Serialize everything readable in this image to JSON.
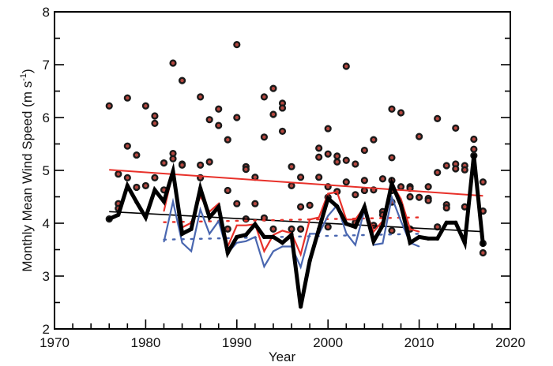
{
  "chart_data": {
    "type": "line",
    "title": "",
    "xlabel": "Year",
    "ylabel": "Monthly Mean Wind Speed (m s⁻¹)",
    "ylabel_parts": {
      "main": "Monthly Mean Wind Speed (m s",
      "sup": "-1",
      "close": ")"
    },
    "xlim": [
      1970,
      2020
    ],
    "ylim": [
      2,
      8
    ],
    "x_ticks": [
      1970,
      1980,
      1990,
      2000,
      2010,
      2020
    ],
    "x_tick_labels": [
      "1970",
      "1980",
      "1990",
      "2000",
      "2010",
      "2020"
    ],
    "x_minor_step": 2,
    "y_ticks": [
      2,
      3,
      4,
      5,
      6,
      7,
      8
    ],
    "y_tick_labels": [
      "2",
      "3",
      "4",
      "5",
      "6",
      "7",
      "8"
    ],
    "y_minor_step": 0.5,
    "grid": false,
    "colors": {
      "black_series": "#000000",
      "red_series": "#e8312a",
      "blue_series": "#4a67b0",
      "dot_center": "#b5473f",
      "dot_ring": "#1a1a1a"
    },
    "series": [
      {
        "name": "annual-mean-black",
        "color": "#000000",
        "style": "thick-solid",
        "x": [
          1976,
          1977,
          1978,
          1979,
          1980,
          1981,
          1982,
          1983,
          1984,
          1985,
          1986,
          1987,
          1988,
          1989,
          1990,
          1991,
          1992,
          1993,
          1994,
          1995,
          1996,
          1997,
          1998,
          1999,
          2000,
          2001,
          2002,
          2003,
          2004,
          2005,
          2006,
          2007,
          2008,
          2009,
          2010,
          2011,
          2012,
          2013,
          2014,
          2015,
          2016,
          2017
        ],
        "values": [
          4.08,
          4.16,
          4.71,
          4.4,
          4.11,
          4.63,
          4.41,
          4.98,
          3.8,
          3.89,
          4.66,
          4.11,
          4.31,
          3.44,
          3.74,
          3.78,
          3.98,
          3.74,
          3.74,
          3.63,
          3.78,
          2.42,
          3.29,
          3.89,
          4.47,
          4.32,
          3.99,
          3.93,
          4.31,
          3.66,
          3.96,
          4.75,
          4.34,
          3.63,
          3.74,
          3.71,
          3.71,
          4.01,
          4.01,
          3.63,
          5.28,
          3.6
        ]
      },
      {
        "name": "annual-mean-red",
        "color": "#e8312a",
        "style": "solid",
        "x": [
          1982,
          1983,
          1984,
          1985,
          1986,
          1987,
          1988,
          1989,
          1990,
          1991,
          1992,
          1993,
          1994,
          1995,
          1996,
          1997,
          1998,
          1999,
          2000,
          2001,
          2002,
          2003,
          2004,
          2005,
          2006,
          2007,
          2008,
          2009,
          2010
        ],
        "values": [
          4.23,
          4.98,
          3.92,
          4.01,
          4.51,
          4.22,
          4.37,
          3.56,
          3.96,
          3.96,
          3.98,
          3.47,
          3.78,
          3.86,
          3.81,
          3.41,
          4.07,
          4.11,
          4.56,
          4.59,
          4.07,
          4.07,
          4.31,
          3.84,
          4.04,
          4.75,
          4.46,
          3.89,
          3.84
        ]
      },
      {
        "name": "annual-mean-blue",
        "color": "#4a67b0",
        "style": "solid",
        "x": [
          1982,
          1983,
          1984,
          1985,
          1986,
          1987,
          1988,
          1989,
          1990,
          1991,
          1992,
          1993,
          1994,
          1995,
          1996,
          1997,
          1998,
          1999,
          2000,
          2001,
          2002,
          2003,
          2004,
          2005,
          2006,
          2007,
          2008,
          2009,
          2010
        ],
        "values": [
          3.65,
          4.41,
          3.63,
          3.47,
          4.26,
          3.8,
          4.04,
          3.44,
          3.63,
          3.66,
          3.74,
          3.18,
          3.47,
          3.56,
          3.56,
          3.17,
          3.8,
          3.8,
          4.14,
          4.34,
          3.81,
          3.59,
          4.26,
          3.59,
          3.62,
          4.49,
          4.04,
          3.63,
          3.56
        ]
      }
    ],
    "trend_lines": [
      {
        "name": "red-trend",
        "color": "#e8312a",
        "style": "solid",
        "x": [
          1976,
          2017
        ],
        "values": [
          5.01,
          4.52
        ]
      },
      {
        "name": "black-trend",
        "color": "#000000",
        "style": "solid",
        "x": [
          1976,
          2017
        ],
        "values": [
          4.22,
          3.84
        ]
      },
      {
        "name": "red-dotted-trend",
        "color": "#e8312a",
        "style": "dotted",
        "x": [
          1982,
          2010
        ],
        "values": [
          4.02,
          4.11
        ]
      },
      {
        "name": "blue-dotted-trend",
        "color": "#4a67b0",
        "style": "dotted",
        "x": [
          1982,
          2010
        ],
        "values": [
          3.69,
          3.8
        ]
      }
    ],
    "scatter": {
      "name": "monthly-values",
      "points": [
        [
          1976,
          6.22
        ],
        [
          1976,
          4.08
        ],
        [
          1977,
          4.93
        ],
        [
          1977,
          4.37
        ],
        [
          1977,
          4.28
        ],
        [
          1978,
          6.37
        ],
        [
          1978,
          5.46
        ],
        [
          1978,
          4.86
        ],
        [
          1979,
          5.29
        ],
        [
          1979,
          4.68
        ],
        [
          1980,
          6.22
        ],
        [
          1980,
          4.71
        ],
        [
          1981,
          6.03
        ],
        [
          1981,
          5.89
        ],
        [
          1981,
          4.86
        ],
        [
          1982,
          5.14
        ],
        [
          1982,
          4.63
        ],
        [
          1983,
          7.03
        ],
        [
          1983,
          5.32
        ],
        [
          1983,
          5.22
        ],
        [
          1984,
          6.7
        ],
        [
          1984,
          5.12
        ],
        [
          1984,
          5.1
        ],
        [
          1986,
          6.39
        ],
        [
          1986,
          5.1
        ],
        [
          1986,
          4.86
        ],
        [
          1987,
          5.96
        ],
        [
          1987,
          5.16
        ],
        [
          1988,
          6.16
        ],
        [
          1988,
          5.85
        ],
        [
          1989,
          5.58
        ],
        [
          1989,
          4.62
        ],
        [
          1989,
          3.89
        ],
        [
          1990,
          7.38
        ],
        [
          1990,
          6.0
        ],
        [
          1990,
          4.37
        ],
        [
          1991,
          5.07
        ],
        [
          1991,
          5.02
        ],
        [
          1991,
          4.08
        ],
        [
          1992,
          4.87
        ],
        [
          1992,
          4.37
        ],
        [
          1993,
          6.39
        ],
        [
          1993,
          5.63
        ],
        [
          1993,
          4.1
        ],
        [
          1994,
          6.55
        ],
        [
          1994,
          6.06
        ],
        [
          1994,
          3.89
        ],
        [
          1995,
          6.27
        ],
        [
          1995,
          6.18
        ],
        [
          1995,
          5.74
        ],
        [
          1996,
          5.07
        ],
        [
          1996,
          4.71
        ],
        [
          1996,
          3.89
        ],
        [
          1997,
          4.87
        ],
        [
          1997,
          4.31
        ],
        [
          1997,
          3.89
        ],
        [
          1998,
          4.34
        ],
        [
          1999,
          5.42
        ],
        [
          1999,
          5.25
        ],
        [
          1999,
          4.87
        ],
        [
          2000,
          5.79
        ],
        [
          2000,
          5.31
        ],
        [
          2000,
          4.69
        ],
        [
          2000,
          4.49
        ],
        [
          2000,
          3.93
        ],
        [
          2001,
          5.27
        ],
        [
          2001,
          5.16
        ],
        [
          2001,
          4.6
        ],
        [
          2002,
          6.97
        ],
        [
          2002,
          5.19
        ],
        [
          2002,
          4.78
        ],
        [
          2003,
          5.12
        ],
        [
          2003,
          4.54
        ],
        [
          2003,
          4.01
        ],
        [
          2004,
          5.38
        ],
        [
          2004,
          4.81
        ],
        [
          2004,
          4.62
        ],
        [
          2005,
          5.58
        ],
        [
          2005,
          4.63
        ],
        [
          2005,
          3.96
        ],
        [
          2006,
          4.84
        ],
        [
          2006,
          4.22
        ],
        [
          2006,
          4.16
        ],
        [
          2007,
          6.16
        ],
        [
          2007,
          5.24
        ],
        [
          2007,
          4.81
        ],
        [
          2007,
          4.62
        ],
        [
          2007,
          4.4
        ],
        [
          2007,
          3.86
        ],
        [
          2008,
          6.09
        ],
        [
          2008,
          4.69
        ],
        [
          2009,
          4.69
        ],
        [
          2009,
          4.66
        ],
        [
          2009,
          4.5
        ],
        [
          2009,
          3.89
        ],
        [
          2010,
          5.64
        ],
        [
          2010,
          4.49
        ],
        [
          2011,
          4.69
        ],
        [
          2011,
          4.47
        ],
        [
          2011,
          4.43
        ],
        [
          2012,
          5.98
        ],
        [
          2012,
          4.96
        ],
        [
          2012,
          3.93
        ],
        [
          2013,
          5.09
        ],
        [
          2013,
          4.35
        ],
        [
          2013,
          4.29
        ],
        [
          2014,
          5.8
        ],
        [
          2014,
          5.12
        ],
        [
          2014,
          5.03
        ],
        [
          2015,
          5.09
        ],
        [
          2015,
          5.01
        ],
        [
          2015,
          4.31
        ],
        [
          2016,
          5.59
        ],
        [
          2016,
          5.4
        ],
        [
          2016,
          5.28
        ],
        [
          2017,
          4.78
        ],
        [
          2017,
          4.23
        ],
        [
          2017,
          3.62
        ],
        [
          2017,
          3.44
        ]
      ]
    }
  }
}
